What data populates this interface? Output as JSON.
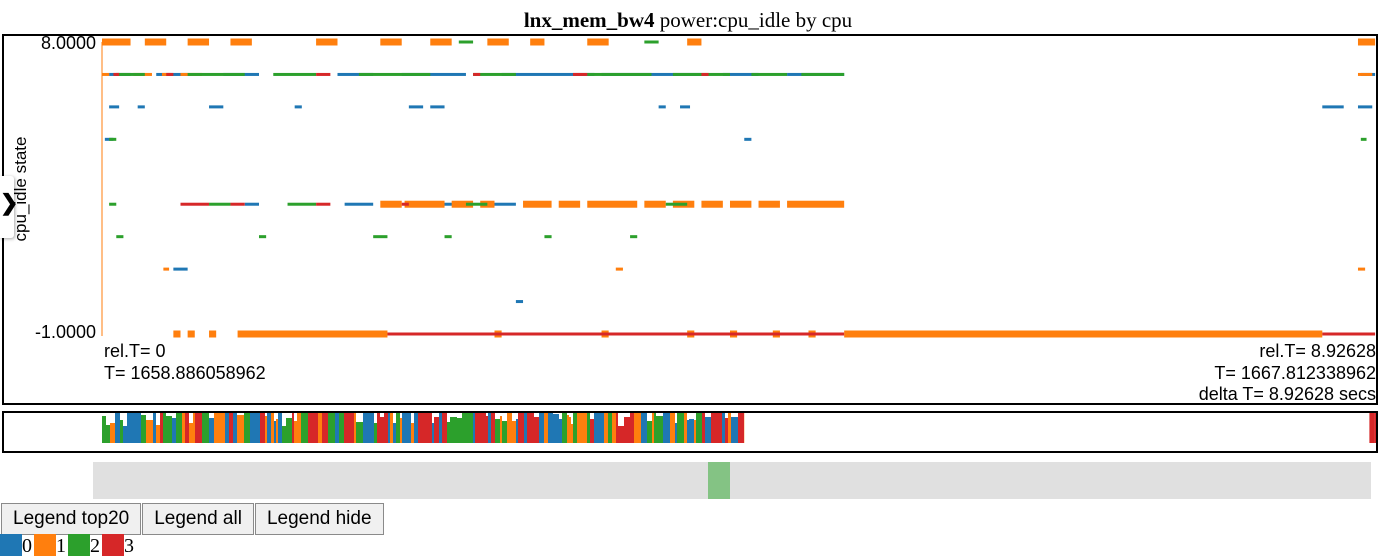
{
  "title": {
    "bold": "lnx_mem_bw4",
    "rest": " power:cpu_idle by cpu"
  },
  "chart_data": {
    "type": "scatter",
    "title": "lnx_mem_bw4 power:cpu_idle by cpu",
    "ylabel": "cpu_idle state",
    "xlabel": "",
    "xlim": [
      0,
      8.92628
    ],
    "ylim": [
      -1.0,
      8.0
    ],
    "y_tick_labels": [
      "8.0000",
      "-1.0000"
    ],
    "y_levels": [
      8,
      7,
      6,
      5,
      3,
      2,
      1,
      0,
      -1
    ],
    "series": [
      {
        "name": "0",
        "color": "#1f77b4",
        "segments": [
          [
            7,
            0.05,
            0.2
          ],
          [
            7,
            0.38,
            0.6
          ],
          [
            7,
            0.85,
            1.1
          ],
          [
            7,
            1.65,
            1.9
          ],
          [
            7,
            2.1,
            2.55
          ],
          [
            7,
            2.8,
            3.45
          ],
          [
            7,
            3.5,
            4.2
          ],
          [
            7,
            4.35,
            4.6
          ],
          [
            7,
            4.8,
            5.2
          ],
          [
            7,
            8.82,
            8.92
          ],
          [
            6,
            0.05,
            0.12
          ],
          [
            6,
            0.25,
            0.3
          ],
          [
            6,
            0.75,
            0.85
          ],
          [
            6,
            1.35,
            1.4
          ],
          [
            6,
            2.15,
            2.25
          ],
          [
            6,
            2.3,
            2.4
          ],
          [
            6,
            3.9,
            3.95
          ],
          [
            6,
            4.05,
            4.12
          ],
          [
            6,
            8.55,
            8.7
          ],
          [
            6,
            8.8,
            8.9
          ],
          [
            5,
            0.02,
            0.08
          ],
          [
            5,
            4.5,
            4.55
          ],
          [
            3,
            1.0,
            1.1
          ],
          [
            3,
            1.7,
            1.9
          ],
          [
            3,
            2.3,
            2.5
          ],
          [
            3,
            2.7,
            2.9
          ],
          [
            1,
            0.5,
            0.6
          ],
          [
            0,
            2.9,
            2.95
          ]
        ]
      },
      {
        "name": "1",
        "color": "#ff7f0e",
        "segments": [
          [
            8,
            0.0,
            0.2
          ],
          [
            8,
            0.3,
            0.45
          ],
          [
            8,
            0.6,
            0.75
          ],
          [
            8,
            0.9,
            1.05
          ],
          [
            8,
            1.5,
            1.65
          ],
          [
            8,
            1.95,
            2.1
          ],
          [
            8,
            2.3,
            2.45
          ],
          [
            8,
            2.7,
            2.85
          ],
          [
            8,
            3.0,
            3.1
          ],
          [
            8,
            3.4,
            3.55
          ],
          [
            8,
            4.1,
            4.2
          ],
          [
            8,
            8.8,
            8.92
          ],
          [
            7,
            0.0,
            0.05
          ],
          [
            7,
            0.22,
            0.35
          ],
          [
            7,
            0.42,
            0.48
          ],
          [
            7,
            0.55,
            0.7
          ],
          [
            7,
            8.8,
            8.9
          ],
          [
            3,
            1.95,
            2.1
          ],
          [
            3,
            2.12,
            2.4
          ],
          [
            3,
            2.45,
            2.6
          ],
          [
            3,
            2.65,
            2.75
          ],
          [
            3,
            2.95,
            3.15
          ],
          [
            3,
            3.2,
            3.35
          ],
          [
            3,
            3.4,
            3.75
          ],
          [
            3,
            3.8,
            3.95
          ],
          [
            3,
            4.0,
            4.15
          ],
          [
            3,
            4.2,
            4.35
          ],
          [
            3,
            4.4,
            4.55
          ],
          [
            3,
            4.6,
            4.75
          ],
          [
            3,
            4.8,
            5.2
          ],
          [
            1,
            0.43,
            0.47
          ],
          [
            1,
            3.6,
            3.65
          ],
          [
            1,
            8.8,
            8.85
          ],
          [
            -1,
            0.5,
            0.55
          ],
          [
            -1,
            0.6,
            0.65
          ],
          [
            -1,
            0.75,
            0.8
          ],
          [
            -1,
            0.95,
            2.0
          ],
          [
            -1,
            2.75,
            2.8
          ],
          [
            -1,
            3.5,
            3.55
          ],
          [
            -1,
            4.1,
            4.15
          ],
          [
            -1,
            4.4,
            4.45
          ],
          [
            -1,
            4.7,
            4.75
          ],
          [
            -1,
            4.95,
            5.0
          ],
          [
            -1,
            5.2,
            8.55
          ]
        ]
      },
      {
        "name": "2",
        "color": "#2ca02c",
        "segments": [
          [
            7,
            0.1,
            0.3
          ],
          [
            7,
            0.6,
            1.0
          ],
          [
            7,
            1.2,
            1.5
          ],
          [
            7,
            1.8,
            2.3
          ],
          [
            7,
            2.6,
            2.9
          ],
          [
            7,
            3.4,
            3.85
          ],
          [
            7,
            4.0,
            4.4
          ],
          [
            7,
            4.55,
            4.8
          ],
          [
            7,
            4.9,
            5.2
          ],
          [
            5,
            0.05,
            0.1
          ],
          [
            5,
            8.82,
            8.86
          ],
          [
            3,
            0.05,
            0.1
          ],
          [
            3,
            0.75,
            0.9
          ],
          [
            3,
            1.3,
            1.5
          ],
          [
            3,
            2.55,
            2.7
          ],
          [
            3,
            3.95,
            4.1
          ],
          [
            2,
            0.1,
            0.15
          ],
          [
            2,
            1.1,
            1.15
          ],
          [
            2,
            1.9,
            2.0
          ],
          [
            2,
            2.4,
            2.45
          ],
          [
            2,
            3.1,
            3.15
          ],
          [
            2,
            3.7,
            3.75
          ],
          [
            8,
            2.5,
            2.6
          ],
          [
            8,
            3.8,
            3.9
          ]
        ]
      },
      {
        "name": "3",
        "color": "#d62728",
        "segments": [
          [
            7,
            0.08,
            0.12
          ],
          [
            7,
            0.45,
            0.5
          ],
          [
            7,
            1.5,
            1.6
          ],
          [
            7,
            2.6,
            2.65
          ],
          [
            7,
            3.3,
            3.4
          ],
          [
            7,
            4.2,
            4.25
          ],
          [
            3,
            0.55,
            0.75
          ],
          [
            3,
            0.9,
            1.0
          ],
          [
            3,
            1.5,
            1.6
          ],
          [
            3,
            2.1,
            2.15
          ],
          [
            -1,
            2.0,
            5.2
          ],
          [
            -1,
            8.55,
            8.92
          ]
        ]
      }
    ],
    "annotations": {
      "left_rel": "rel.T= 0",
      "left_abs": "T= 1658.886058962",
      "right_rel": "rel.T= 8.92628",
      "right_abs": "T= 1667.812338962",
      "right_delta": "delta T= 8.92628  secs"
    },
    "grid": false,
    "legend_placement": "bottom-left"
  },
  "overview": {
    "blocks": [
      [
        0.0,
        4.5
      ],
      [
        8.88,
        8.92628
      ]
    ],
    "colors": [
      "#1f77b4",
      "#ff7f0e",
      "#2ca02c",
      "#d62728"
    ]
  },
  "scrollbar": {
    "thumb_position_fraction": 0.49
  },
  "buttons": {
    "top20": "Legend top20",
    "all": "Legend all",
    "hide": "Legend hide"
  },
  "legend": [
    {
      "label": "0",
      "color": "#1f77b4"
    },
    {
      "label": "1",
      "color": "#ff7f0e"
    },
    {
      "label": "2",
      "color": "#2ca02c"
    },
    {
      "label": "3",
      "color": "#d62728"
    }
  ],
  "toggle_icon": "chevron-right-icon"
}
